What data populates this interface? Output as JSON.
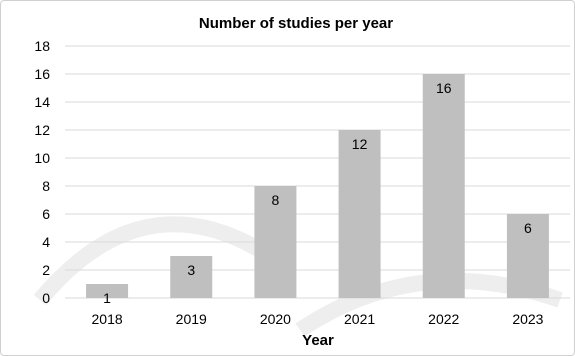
{
  "chart_data": {
    "type": "bar",
    "title": "Number of studies per year",
    "xlabel": "Year",
    "ylabel": "",
    "categories": [
      "2018",
      "2019",
      "2020",
      "2021",
      "2022",
      "2023"
    ],
    "values": [
      1,
      3,
      8,
      12,
      16,
      6
    ],
    "ylim": [
      0,
      18
    ],
    "yticks": [
      0,
      2,
      4,
      6,
      8,
      10,
      12,
      14,
      16,
      18
    ],
    "grid": true,
    "legend": "none",
    "bar_color": "#bfbfbf",
    "gridline_color": "#d9d9d9"
  }
}
